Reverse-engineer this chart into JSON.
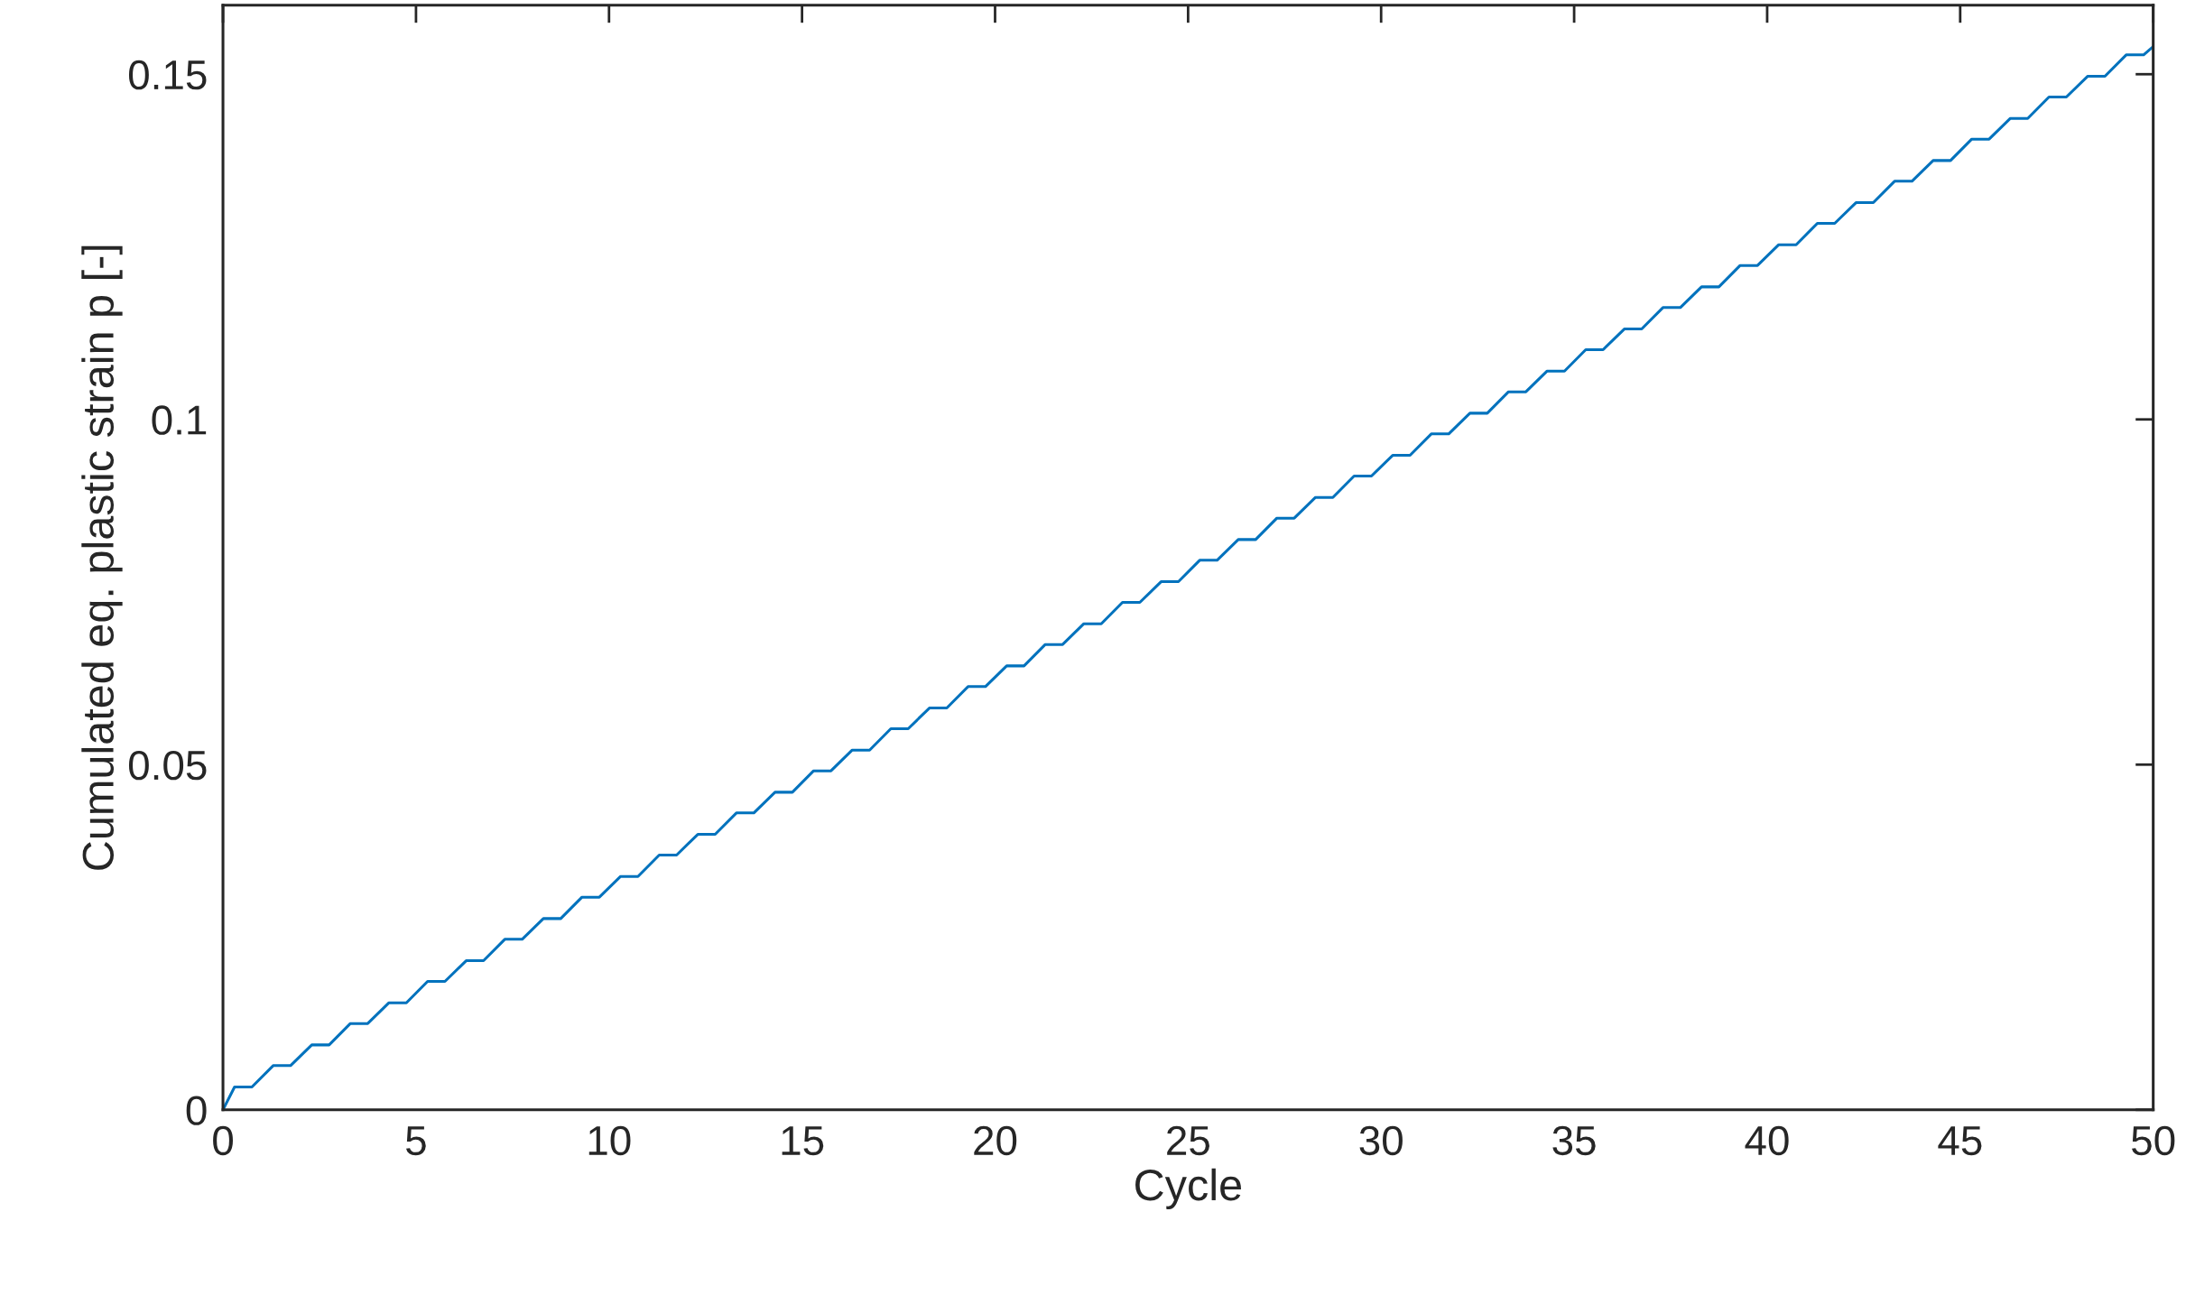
{
  "chart_data": {
    "type": "line",
    "xlabel": "Cycle",
    "ylabel": "Cumulated eq. plastic strain p [-]",
    "xlim": [
      0,
      50
    ],
    "xticks": [
      0,
      5,
      10,
      15,
      20,
      25,
      30,
      35,
      40,
      45,
      50
    ],
    "ylim": [
      0,
      0.16
    ],
    "yticks": [
      0,
      0.05,
      0.1,
      0.15
    ],
    "grid": false,
    "legend": false,
    "series": [
      {
        "color": "#0072bd",
        "x": [
          0,
          0.3,
          0.75,
          1.3,
          1.75,
          2.3,
          2.75,
          3.3,
          3.75,
          4.3,
          4.75,
          5.3,
          5.75,
          6.3,
          6.75,
          7.3,
          7.75,
          8.3,
          8.75,
          9.3,
          9.75,
          10.3,
          10.75,
          11.3,
          11.75,
          12.3,
          12.75,
          13.3,
          13.75,
          14.3,
          14.75,
          15.3,
          15.75,
          16.3,
          16.75,
          17.3,
          17.75,
          18.3,
          18.75,
          19.3,
          19.75,
          20.3,
          20.75,
          21.3,
          21.75,
          22.3,
          22.75,
          23.3,
          23.75,
          24.3,
          24.75,
          25.3,
          25.75,
          26.3,
          26.75,
          27.3,
          27.75,
          28.3,
          28.75,
          29.3,
          29.75,
          30.3,
          30.75,
          31.3,
          31.75,
          32.3,
          32.75,
          33.3,
          33.75,
          34.3,
          34.75,
          35.3,
          35.75,
          36.3,
          36.75,
          37.3,
          37.75,
          38.3,
          38.75,
          39.3,
          39.75,
          40.3,
          40.75,
          41.3,
          41.75,
          42.3,
          42.75,
          43.3,
          43.75,
          44.3,
          44.75,
          45.3,
          45.75,
          46.3,
          46.75,
          47.3,
          47.75,
          48.3,
          48.75,
          49.3,
          49.75,
          50
        ],
        "values": [
          0,
          0.0033,
          0.0033,
          0.0064,
          0.0064,
          0.0094,
          0.0094,
          0.0125,
          0.0125,
          0.0155,
          0.0155,
          0.0186,
          0.0186,
          0.0216,
          0.0216,
          0.0247,
          0.0247,
          0.0277,
          0.0277,
          0.0308,
          0.0308,
          0.0338,
          0.0338,
          0.0369,
          0.0369,
          0.0399,
          0.0399,
          0.043,
          0.043,
          0.046,
          0.046,
          0.0491,
          0.0491,
          0.0521,
          0.0521,
          0.0552,
          0.0552,
          0.0582,
          0.0582,
          0.0613,
          0.0613,
          0.0643,
          0.0643,
          0.0674,
          0.0674,
          0.0704,
          0.0704,
          0.0735,
          0.0735,
          0.0765,
          0.0765,
          0.0796,
          0.0796,
          0.0826,
          0.0826,
          0.0857,
          0.0857,
          0.0887,
          0.0887,
          0.0918,
          0.0918,
          0.0948,
          0.0948,
          0.0979,
          0.0979,
          0.1009,
          0.1009,
          0.104,
          0.104,
          0.107,
          0.107,
          0.1101,
          0.1101,
          0.1131,
          0.1131,
          0.1162,
          0.1162,
          0.1192,
          0.1192,
          0.1223,
          0.1223,
          0.1253,
          0.1253,
          0.1284,
          0.1284,
          0.1314,
          0.1314,
          0.1345,
          0.1345,
          0.1375,
          0.1375,
          0.1406,
          0.1406,
          0.1436,
          0.1436,
          0.1467,
          0.1467,
          0.1497,
          0.1497,
          0.1528,
          0.1528,
          0.154
        ]
      }
    ]
  }
}
